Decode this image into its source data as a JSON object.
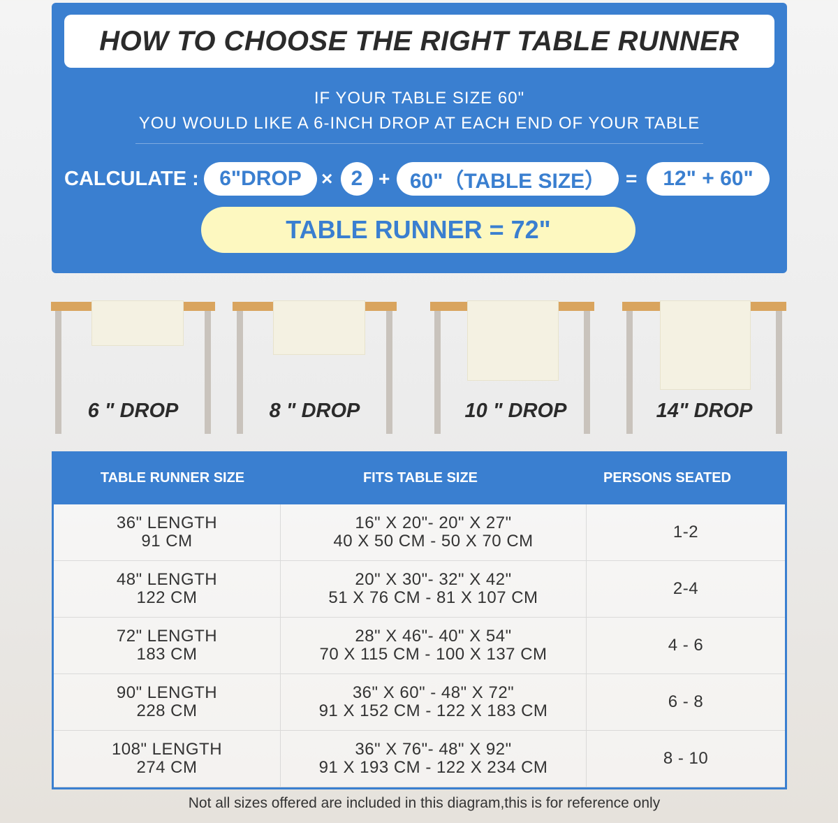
{
  "title": "HOW TO CHOOSE THE RIGHT TABLE RUNNER",
  "intro": [
    "IF YOUR TABLE SIZE 60\"",
    "YOU WOULD LIKE A 6-INCH DROP AT EACH END OF YOUR TABLE"
  ],
  "calc": {
    "label": "CALCULATE :",
    "drop": "6\"DROP",
    "times": "×",
    "multiplier": "2",
    "plus": "+",
    "table_size": "60\"（TABLE SIZE）",
    "equals": "=",
    "sum": "12\" + 60\"",
    "result": "TABLE RUNNER = 72\""
  },
  "drops": [
    "6 \" DROP",
    "8 \" DROP",
    "10 \" DROP",
    "14\" DROP"
  ],
  "colors": {
    "blue": "#3a7fd0",
    "yellow": "#fdf8c0",
    "tabletop": "#d9a45e"
  },
  "table": {
    "headers": [
      "TABLE RUNNER SIZE",
      "FITS TABLE SIZE",
      "PERSONS SEATED"
    ],
    "rows": [
      {
        "size": [
          "36\" LENGTH",
          "91 CM"
        ],
        "fits": [
          "16\" X 20\"- 20\" X 27\"",
          "40 X 50 CM - 50 X 70 CM"
        ],
        "persons": "1-2"
      },
      {
        "size": [
          "48\" LENGTH",
          "122 CM"
        ],
        "fits": [
          "20\" X 30\"- 32\" X 42\"",
          "51 X 76 CM - 81 X 107 CM"
        ],
        "persons": "2-4"
      },
      {
        "size": [
          "72\" LENGTH",
          "183 CM"
        ],
        "fits": [
          "28\" X 46\"- 40\" X 54\"",
          "70 X 115 CM - 100 X 137 CM"
        ],
        "persons": "4 - 6"
      },
      {
        "size": [
          "90\" LENGTH",
          "228 CM"
        ],
        "fits": [
          "36\" X 60\" - 48\" X 72\"",
          "91 X 152 CM - 122 X 183 CM"
        ],
        "persons": "6 - 8"
      },
      {
        "size": [
          "108\" LENGTH",
          "274 CM"
        ],
        "fits": [
          "36\" X 76\"- 48\" X 92\"",
          "91 X 193 CM - 122 X 234 CM"
        ],
        "persons": "8 - 10"
      }
    ]
  },
  "note": "Not all sizes offered are included in this diagram,this is for reference only"
}
